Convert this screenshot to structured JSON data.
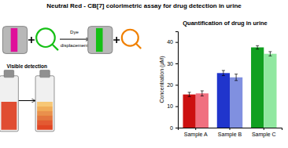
{
  "chart_data": {
    "type": "bar",
    "title": "Neutral Red - CB[7] colorimetric assay for drug detection in urine",
    "subtitle": "Quantification of drug in urine",
    "y_label": "Concentration (μM)",
    "annotations": [
      "Dye",
      "displacement",
      "Visible detection"
    ],
    "categories": [
      "Sample A",
      "Sample B",
      "Sample C"
    ],
    "series": [
      {
        "values": [
          15.5,
          25.5,
          37.5
        ],
        "colors": [
          "#cc1010",
          "#2035cc",
          "#10a020"
        ],
        "errors": [
          1.0,
          1.2,
          0.8
        ]
      },
      {
        "values": [
          16.0,
          23.5,
          34.5
        ],
        "colors": [
          "#f07080",
          "#8090e0",
          "#90e8a0"
        ],
        "errors": [
          1.2,
          1.5,
          1.0
        ]
      }
    ],
    "ylim": [
      0,
      45
    ],
    "yticks": [
      0,
      10,
      20,
      30,
      40
    ],
    "grid": false
  }
}
